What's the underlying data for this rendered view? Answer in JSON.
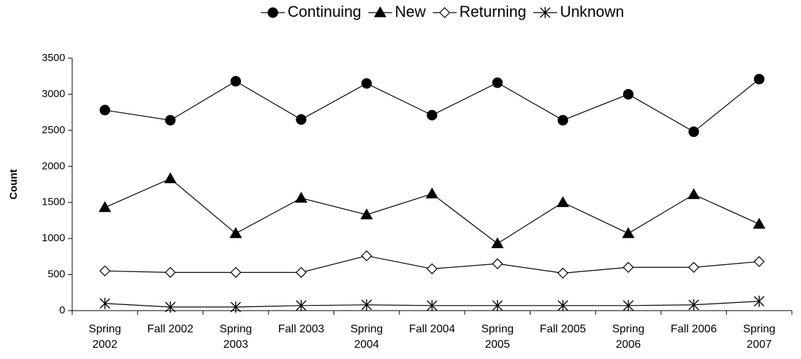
{
  "chart_data": {
    "type": "line",
    "y_label": "Count",
    "categories": [
      "Spring 2002",
      "Fall 2002",
      "Spring 2003",
      "Fall 2003",
      "Spring 2004",
      "Fall 2004",
      "Spring 2005",
      "Fall 2005",
      "Spring 2006",
      "Fall 2006",
      "Spring 2007"
    ],
    "series": [
      {
        "name": "Continuing",
        "color": "#000000",
        "marker": "circle",
        "values": [
          2780,
          2640,
          3180,
          2650,
          3150,
          2710,
          3160,
          2640,
          3000,
          2480,
          3210
        ]
      },
      {
        "name": "New",
        "color": "#000000",
        "marker": "triangle",
        "values": [
          1430,
          1830,
          1070,
          1560,
          1330,
          1620,
          930,
          1500,
          1070,
          1610,
          1200
        ]
      },
      {
        "name": "Returning",
        "color": "#000000",
        "marker": "diamond",
        "values": [
          550,
          530,
          530,
          530,
          760,
          580,
          650,
          520,
          600,
          600,
          680
        ]
      },
      {
        "name": "Unknown",
        "color": "#000000",
        "marker": "star",
        "values": [
          100,
          50,
          50,
          70,
          80,
          70,
          70,
          70,
          70,
          80,
          130
        ]
      }
    ],
    "ylim": [
      0,
      3500
    ],
    "yticks": [
      0,
      500,
      1000,
      1500,
      2000,
      2500,
      3000,
      3500
    ],
    "grid": false,
    "legend": "top"
  }
}
